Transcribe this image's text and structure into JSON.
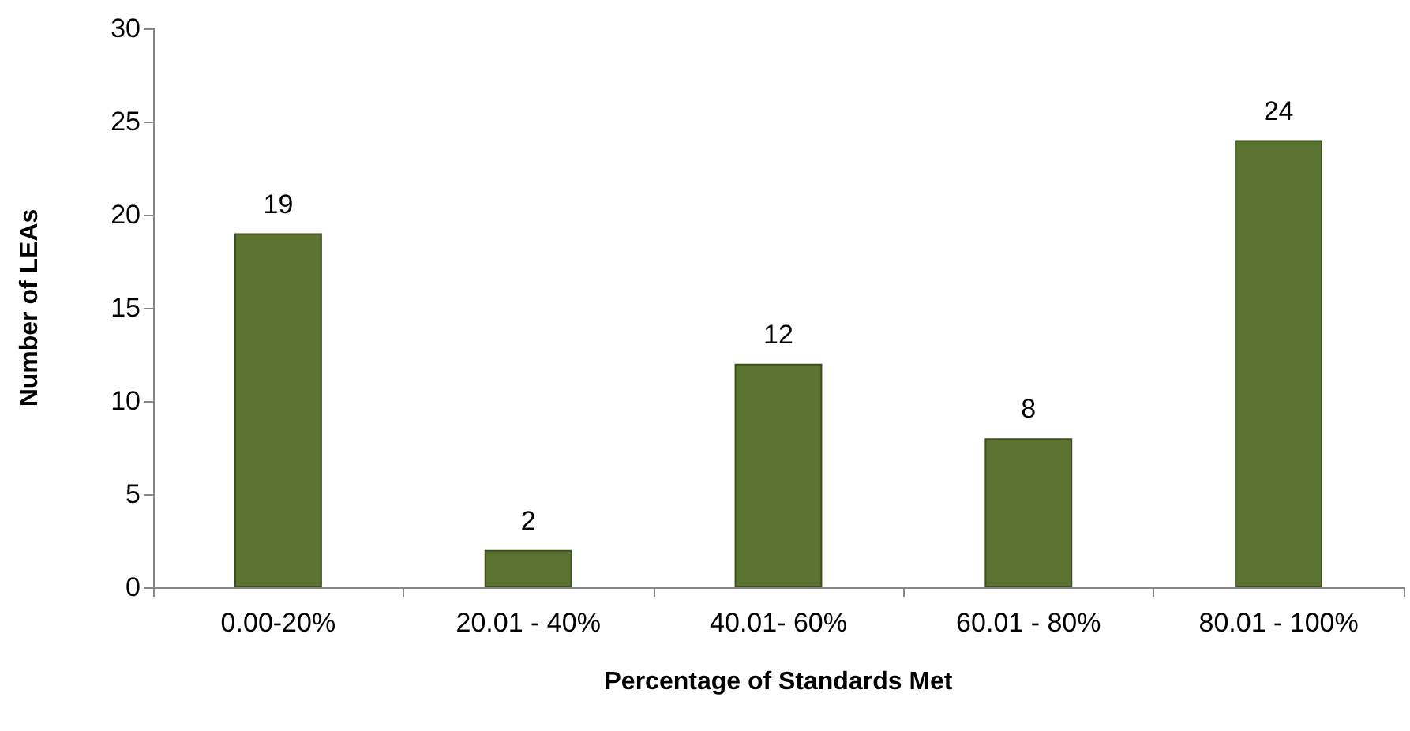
{
  "chart_data": {
    "type": "bar",
    "xlabel": "Percentage of Standards Met",
    "ylabel": "Number of LEAs",
    "categories": [
      "0.00-20%",
      "20.01 - 40%",
      "40.01- 60%",
      "60.01 - 80%",
      "80.01 - 100%"
    ],
    "values": [
      19,
      2,
      12,
      8,
      24
    ],
    "color": "#5b7330",
    "ylim": [
      0,
      30
    ],
    "yticks": [
      0,
      5,
      10,
      15,
      20,
      25,
      30
    ],
    "data_labels": true
  }
}
